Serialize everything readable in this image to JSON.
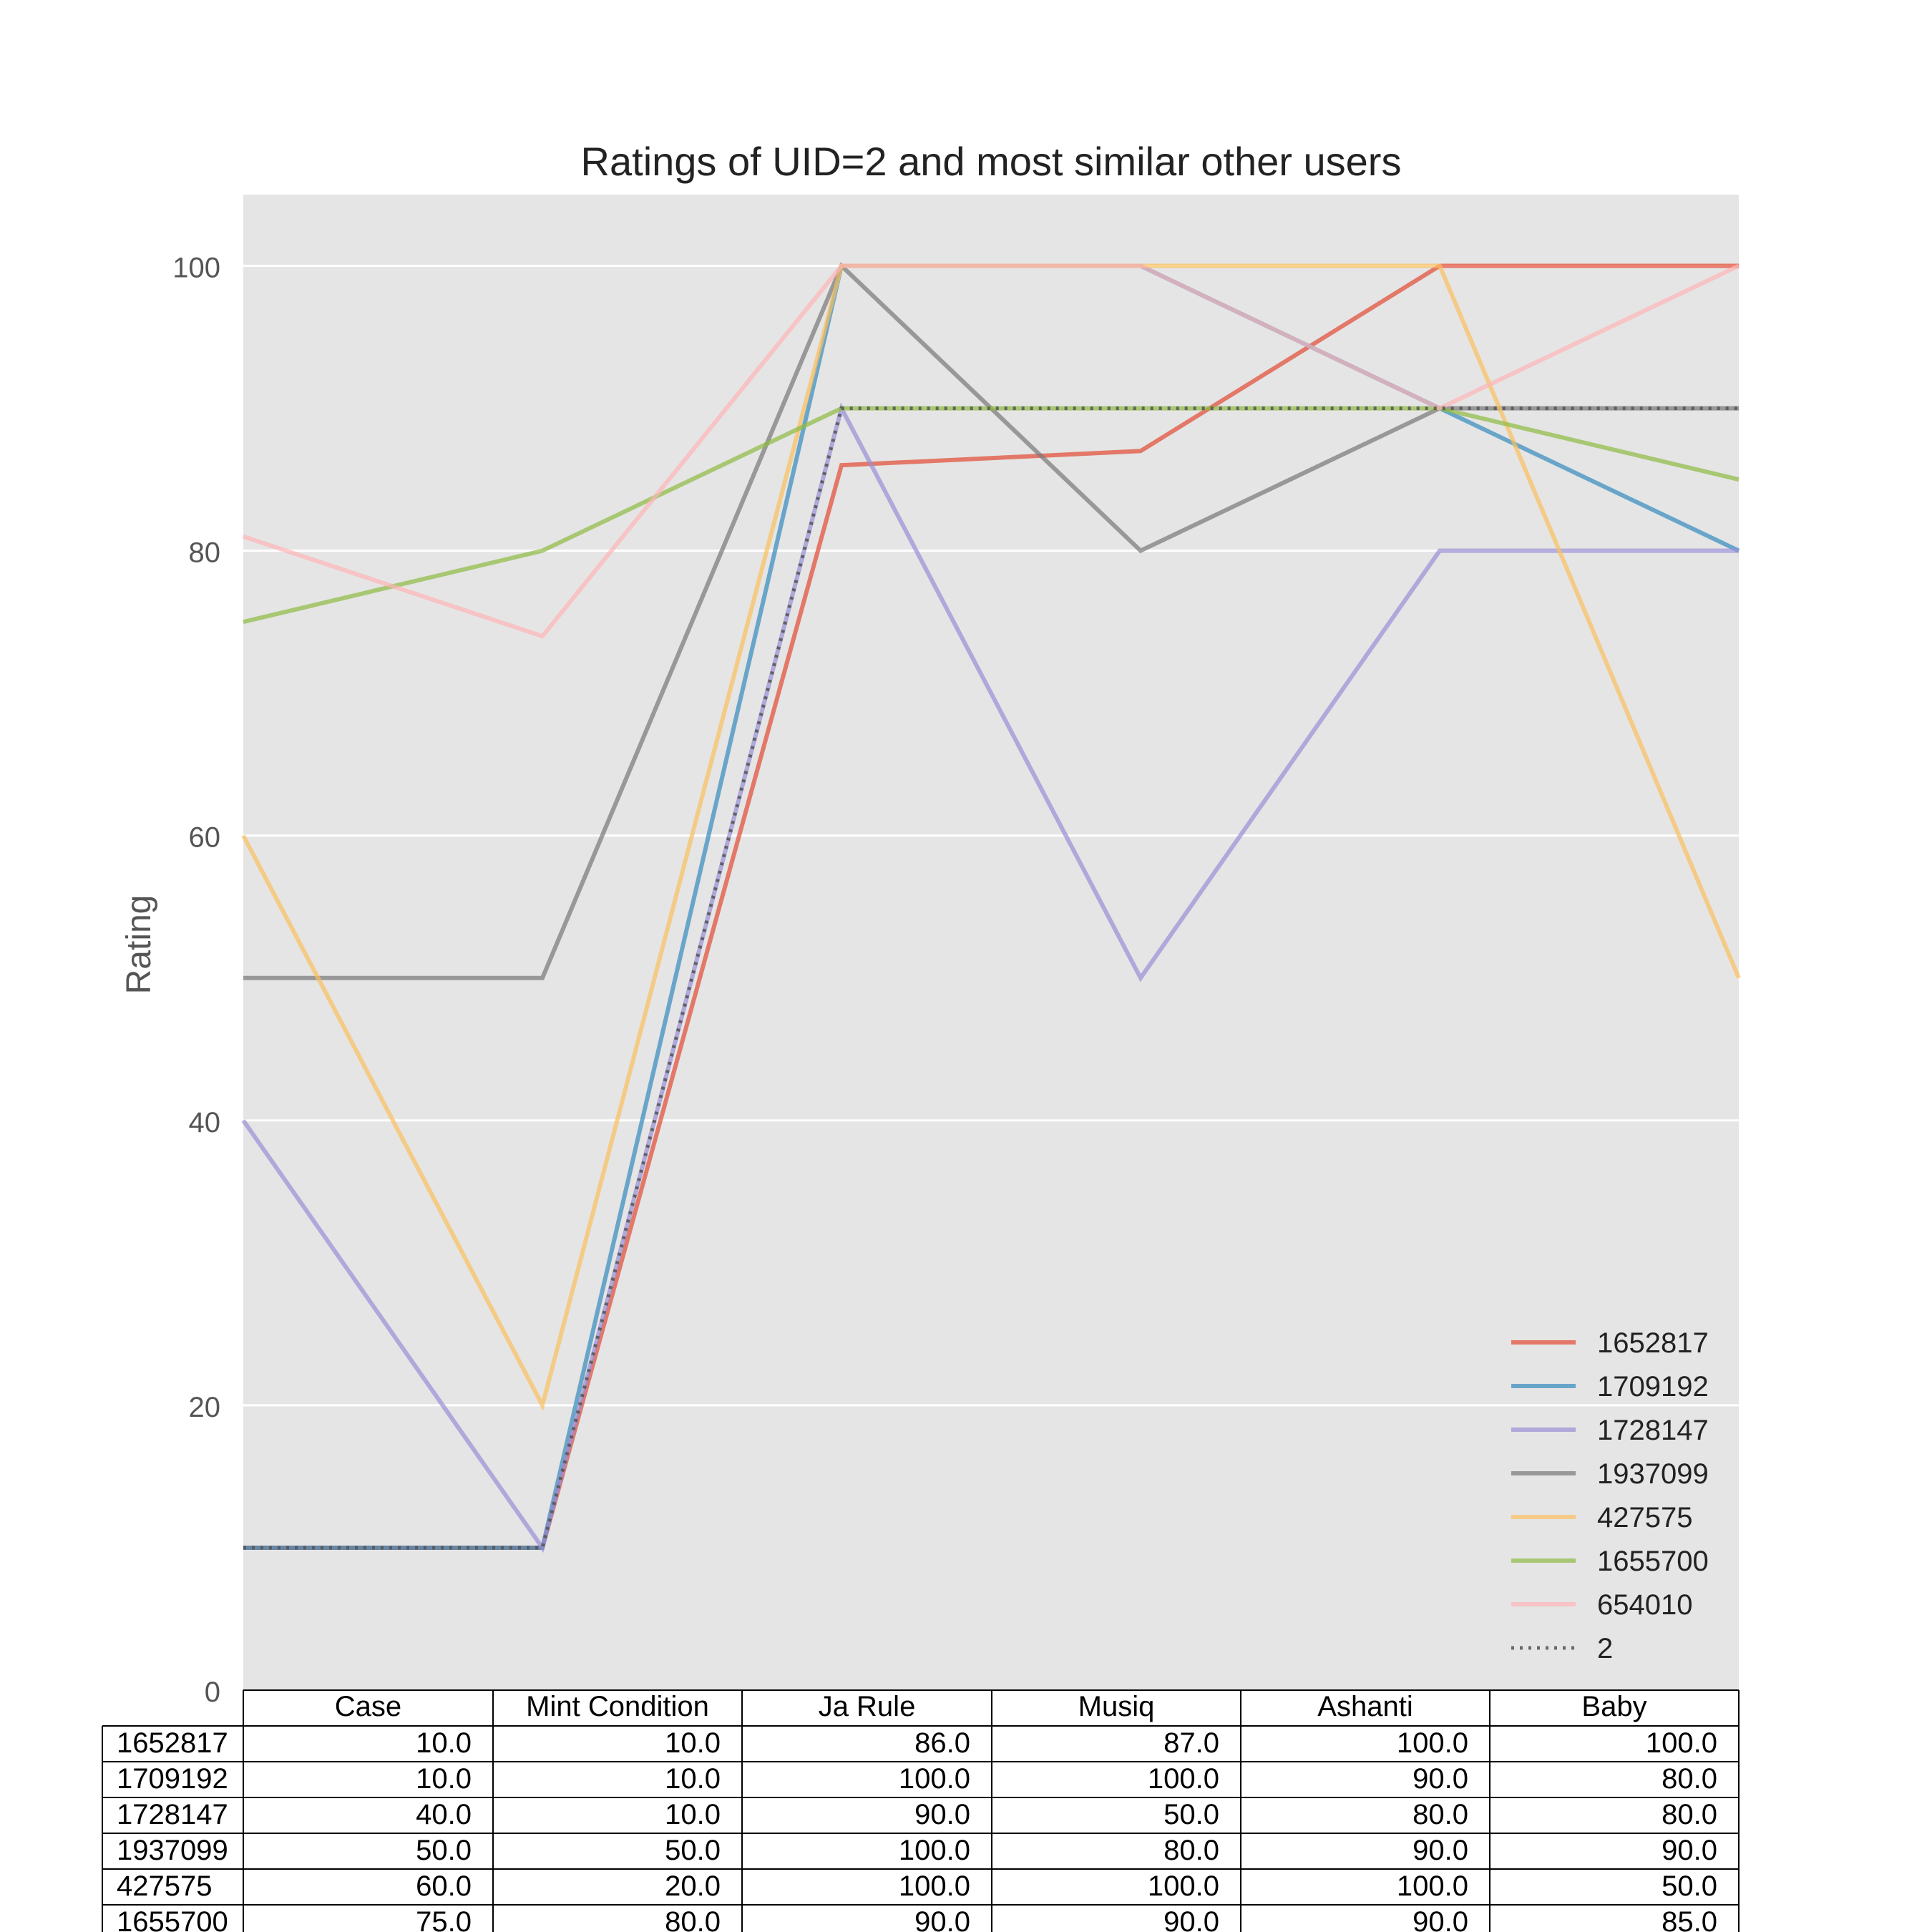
{
  "chart_data": {
    "type": "line",
    "title": "Ratings of UID=2 and most similar other users",
    "xlabel": "",
    "ylabel": "Rating",
    "categories": [
      "Case",
      "Mint Condition",
      "Ja Rule",
      "Musiq",
      "Ashanti",
      "Baby"
    ],
    "ylim": [
      0,
      105
    ],
    "yticks": [
      "0",
      "20",
      "40",
      "60",
      "80",
      "100"
    ],
    "grid": true,
    "legend_position": "lower-right",
    "series": [
      {
        "name": "1652817",
        "color": "#E24A33",
        "style": "solid",
        "values": [
          10,
          10,
          86,
          87,
          100,
          100
        ]
      },
      {
        "name": "1709192",
        "color": "#348ABD",
        "style": "solid",
        "values": [
          10,
          10,
          100,
          100,
          90,
          80
        ]
      },
      {
        "name": "1728147",
        "color": "#988ED5",
        "style": "solid",
        "values": [
          40,
          10,
          90,
          50,
          80,
          80
        ]
      },
      {
        "name": "1937099",
        "color": "#777777",
        "style": "solid",
        "values": [
          50,
          50,
          100,
          80,
          90,
          90
        ]
      },
      {
        "name": "427575",
        "color": "#FBC15E",
        "style": "solid",
        "values": [
          60,
          20,
          100,
          100,
          100,
          50
        ]
      },
      {
        "name": "1655700",
        "color": "#8EBA42",
        "style": "solid",
        "values": [
          75,
          80,
          90,
          90,
          90,
          85
        ]
      },
      {
        "name": "654010",
        "color": "#FFB5B8",
        "style": "solid",
        "values": [
          81,
          74,
          100,
          100,
          90,
          100
        ]
      },
      {
        "name": "2",
        "color": "#555555",
        "style": "dotted",
        "values": [
          10,
          10,
          90,
          90,
          90,
          90
        ]
      }
    ],
    "table": {
      "columns": [
        "Case",
        "Mint Condition",
        "Ja Rule",
        "Musiq",
        "Ashanti",
        "Baby"
      ],
      "rows": [
        {
          "label": "1652817",
          "cells": [
            "10.0",
            "10.0",
            "86.0",
            "87.0",
            "100.0",
            "100.0"
          ]
        },
        {
          "label": "1709192",
          "cells": [
            "10.0",
            "10.0",
            "100.0",
            "100.0",
            "90.0",
            "80.0"
          ]
        },
        {
          "label": "1728147",
          "cells": [
            "40.0",
            "10.0",
            "90.0",
            "50.0",
            "80.0",
            "80.0"
          ]
        },
        {
          "label": "1937099",
          "cells": [
            "50.0",
            "50.0",
            "100.0",
            "80.0",
            "90.0",
            "90.0"
          ]
        },
        {
          "label": "427575",
          "cells": [
            "60.0",
            "20.0",
            "100.0",
            "100.0",
            "100.0",
            "50.0"
          ]
        },
        {
          "label": "1655700",
          "cells": [
            "75.0",
            "80.0",
            "90.0",
            "90.0",
            "90.0",
            "85.0"
          ]
        }
      ]
    }
  }
}
